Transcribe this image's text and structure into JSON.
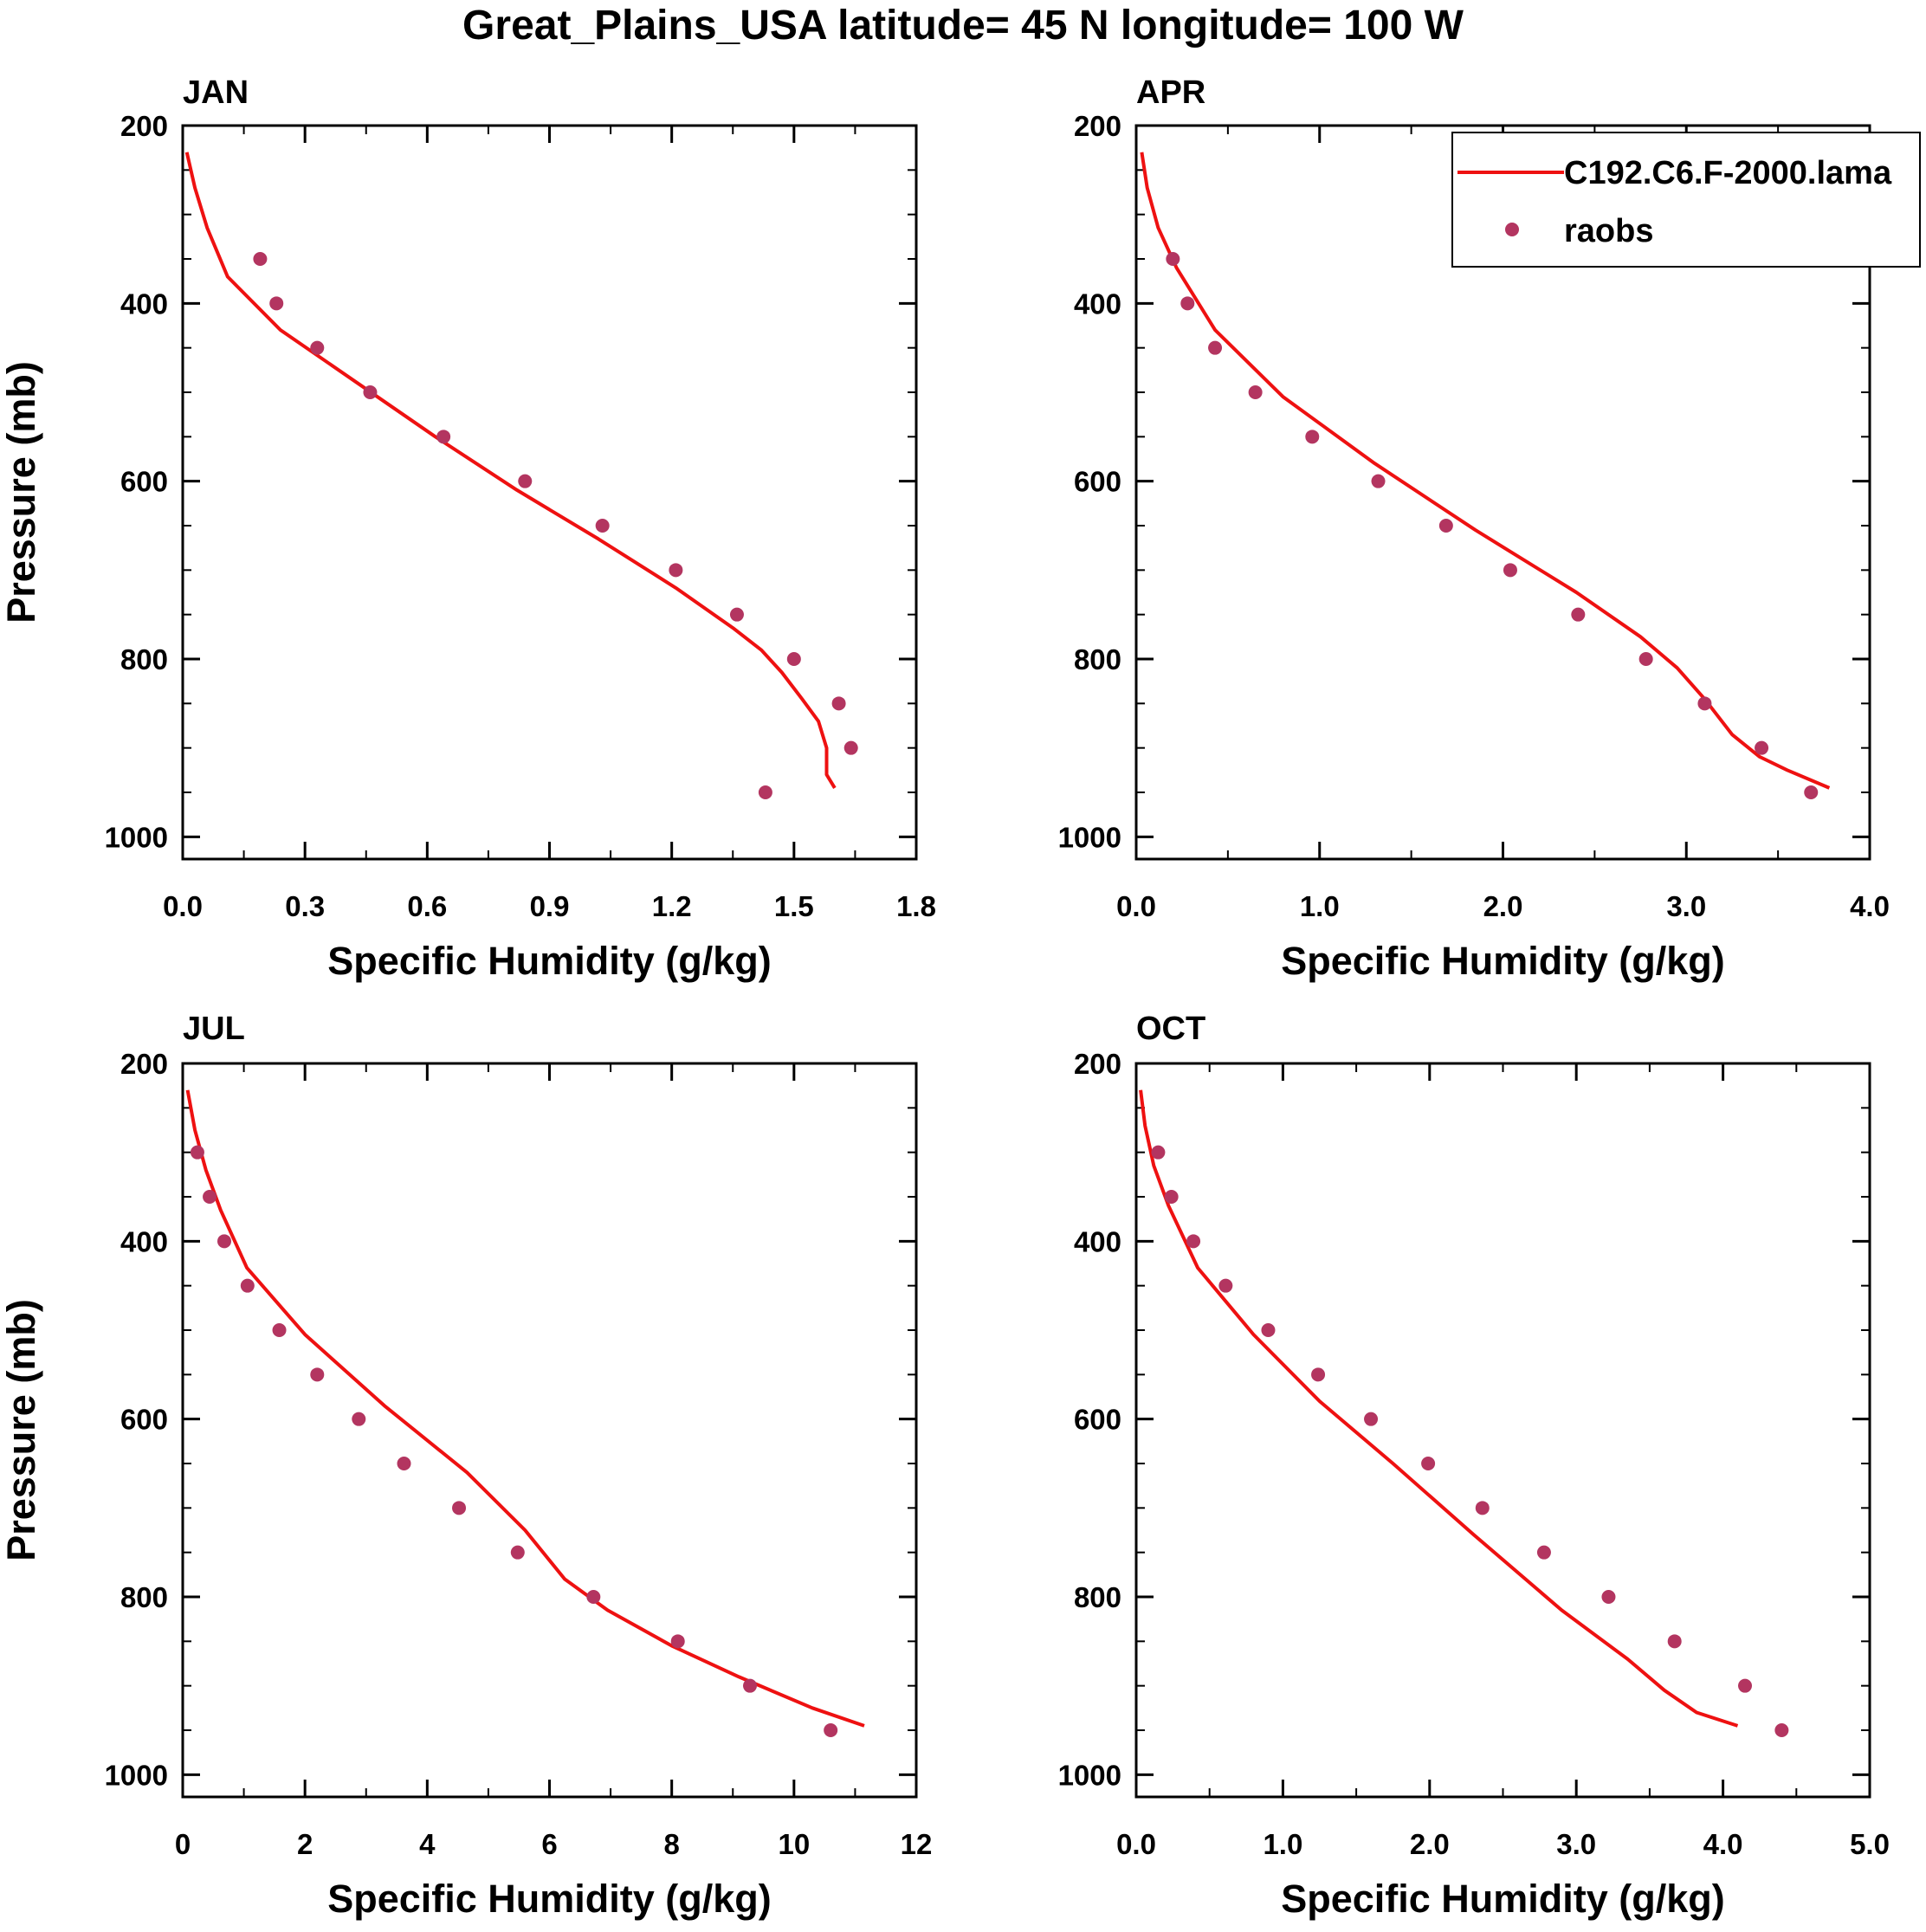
{
  "title": "Great_Plains_USA  latitude= 45 N longitude= 100 W",
  "colors": {
    "model": "#ee1111",
    "obs": "#b33560",
    "axis": "#000000"
  },
  "legend": {
    "model_label": "C192.C6.F-2000.lama",
    "obs_label": "raobs",
    "placement": "top-right of APR panel"
  },
  "chart_data": [
    {
      "type": "line",
      "panel": "JAN",
      "title": "JAN",
      "xlabel": "Specific Humidity (g/kg)",
      "ylabel": "Pressure (mb)",
      "xlim": [
        0,
        1.8
      ],
      "ylim": [
        200,
        1025
      ],
      "y_inverted": true,
      "xticks": [
        0.0,
        0.3,
        0.6,
        0.9,
        1.2,
        1.5,
        1.8
      ],
      "xtick_labels": [
        "0.0",
        "0.3",
        "0.6",
        "0.9",
        "1.2",
        "1.5",
        "1.8"
      ],
      "yticks": [
        200,
        400,
        600,
        800,
        1000
      ],
      "ytick_labels": [
        "200",
        "400",
        "600",
        "800",
        "1000"
      ],
      "series": [
        {
          "name": "C192.C6.F-2000.lama",
          "kind": "line",
          "x": [
            0.01,
            0.03,
            0.06,
            0.11,
            0.24,
            0.43,
            0.62,
            0.82,
            1.02,
            1.21,
            1.35,
            1.42,
            1.47,
            1.52,
            1.56,
            1.58,
            1.58,
            1.6
          ],
          "y": [
            230,
            270,
            315,
            370,
            430,
            490,
            550,
            610,
            665,
            720,
            765,
            790,
            815,
            845,
            870,
            900,
            930,
            945
          ]
        },
        {
          "name": "raobs",
          "kind": "scatter",
          "x": [
            0.19,
            0.23,
            0.33,
            0.46,
            0.64,
            0.84,
            1.03,
            1.21,
            1.36,
            1.5,
            1.61,
            1.64,
            1.43
          ],
          "y": [
            350,
            400,
            450,
            500,
            550,
            600,
            650,
            700,
            750,
            800,
            850,
            900,
            950
          ]
        }
      ]
    },
    {
      "type": "line",
      "panel": "APR",
      "title": "APR",
      "xlabel": "Specific Humidity (g/kg)",
      "ylabel": "",
      "xlim": [
        0,
        4.0
      ],
      "ylim": [
        200,
        1025
      ],
      "y_inverted": true,
      "xticks": [
        0.0,
        1.0,
        2.0,
        3.0,
        4.0
      ],
      "xtick_labels": [
        "0.0",
        "1.0",
        "2.0",
        "3.0",
        "4.0"
      ],
      "yticks": [
        200,
        400,
        600,
        800,
        1000
      ],
      "ytick_labels": [
        "200",
        "400",
        "600",
        "800",
        "1000"
      ],
      "series": [
        {
          "name": "C192.C6.F-2000.lama",
          "kind": "line",
          "x": [
            0.03,
            0.06,
            0.12,
            0.22,
            0.43,
            0.8,
            1.3,
            1.85,
            2.4,
            2.75,
            2.95,
            3.1,
            3.25,
            3.4,
            3.55,
            3.78
          ],
          "y": [
            230,
            270,
            315,
            360,
            430,
            505,
            580,
            655,
            725,
            775,
            810,
            845,
            885,
            910,
            925,
            945
          ]
        },
        {
          "name": "raobs",
          "kind": "scatter",
          "x": [
            0.2,
            0.28,
            0.43,
            0.65,
            0.96,
            1.32,
            1.69,
            2.04,
            2.41,
            2.78,
            3.1,
            3.41,
            3.68
          ],
          "y": [
            350,
            400,
            450,
            500,
            550,
            600,
            650,
            700,
            750,
            800,
            850,
            900,
            950
          ]
        }
      ]
    },
    {
      "type": "line",
      "panel": "JUL",
      "title": "JUL",
      "xlabel": "Specific Humidity (g/kg)",
      "ylabel": "Pressure (mb)",
      "xlim": [
        0,
        12
      ],
      "ylim": [
        200,
        1025
      ],
      "y_inverted": true,
      "xticks": [
        0,
        2,
        4,
        6,
        8,
        10,
        12
      ],
      "xtick_labels": [
        "0",
        "2",
        "4",
        "6",
        "8",
        "10",
        "12"
      ],
      "yticks": [
        200,
        400,
        600,
        800,
        1000
      ],
      "ytick_labels": [
        "200",
        "400",
        "600",
        "800",
        "1000"
      ],
      "series": [
        {
          "name": "C192.C6.F-2000.lama",
          "kind": "line",
          "x": [
            0.08,
            0.2,
            0.38,
            0.62,
            1.05,
            2.0,
            3.3,
            4.65,
            5.6,
            6.25,
            6.95,
            8.0,
            9.1,
            10.3,
            11.15
          ],
          "y": [
            230,
            275,
            320,
            365,
            430,
            505,
            585,
            660,
            725,
            780,
            815,
            855,
            890,
            925,
            945
          ]
        },
        {
          "name": "raobs",
          "kind": "scatter",
          "x": [
            0.24,
            0.44,
            0.68,
            1.06,
            1.58,
            2.2,
            2.88,
            3.62,
            4.52,
            5.48,
            6.72,
            8.1,
            9.28,
            10.6
          ],
          "y": [
            300,
            350,
            400,
            450,
            500,
            550,
            600,
            650,
            700,
            750,
            800,
            850,
            900,
            950
          ]
        }
      ]
    },
    {
      "type": "line",
      "panel": "OCT",
      "title": "OCT",
      "xlabel": "Specific Humidity (g/kg)",
      "ylabel": "",
      "xlim": [
        0,
        5.0
      ],
      "ylim": [
        200,
        1025
      ],
      "y_inverted": true,
      "xticks": [
        0.0,
        1.0,
        2.0,
        3.0,
        4.0,
        5.0
      ],
      "xtick_labels": [
        "0.0",
        "1.0",
        "2.0",
        "3.0",
        "4.0",
        "5.0"
      ],
      "yticks": [
        200,
        400,
        600,
        800,
        1000
      ],
      "ytick_labels": [
        "200",
        "400",
        "600",
        "800",
        "1000"
      ],
      "series": [
        {
          "name": "C192.C6.F-2000.lama",
          "kind": "line",
          "x": [
            0.03,
            0.06,
            0.12,
            0.22,
            0.42,
            0.8,
            1.25,
            1.75,
            2.3,
            2.9,
            3.35,
            3.6,
            3.82,
            4.1
          ],
          "y": [
            230,
            270,
            315,
            360,
            430,
            505,
            580,
            650,
            730,
            815,
            870,
            905,
            930,
            945
          ]
        },
        {
          "name": "raobs",
          "kind": "scatter",
          "x": [
            0.15,
            0.24,
            0.39,
            0.61,
            0.9,
            1.24,
            1.6,
            1.99,
            2.36,
            2.78,
            3.22,
            3.67,
            4.15,
            4.4
          ],
          "y": [
            300,
            350,
            400,
            450,
            500,
            550,
            600,
            650,
            700,
            750,
            800,
            850,
            900,
            950
          ]
        }
      ]
    }
  ]
}
